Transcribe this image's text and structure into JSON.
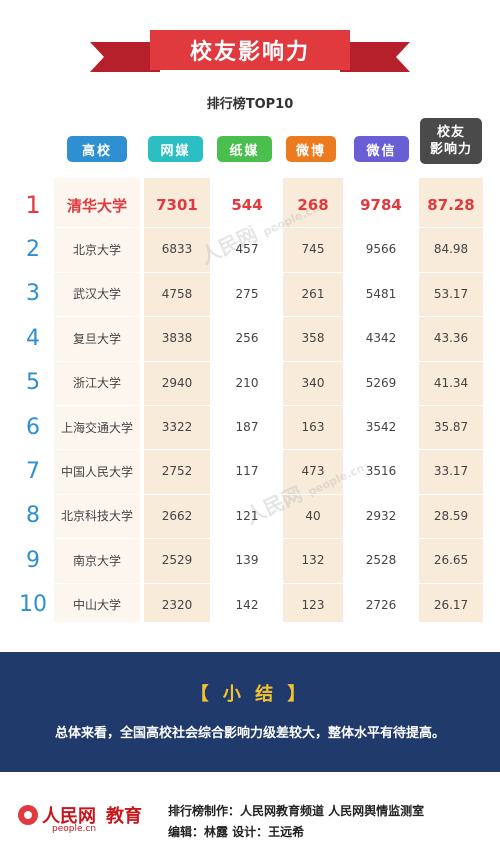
{
  "header": {
    "title": "校友影响力",
    "subtitle": "排行榜TOP10"
  },
  "columns": {
    "school": "高校",
    "web": "网媒",
    "paper": "纸媒",
    "weibo": "微博",
    "wechat": "微信",
    "score_line1": "校友",
    "score_line2": "影响力"
  },
  "rows": [
    {
      "rank": "1",
      "school": "清华大学",
      "web": "7301",
      "paper": "544",
      "weibo": "268",
      "wechat": "9784",
      "score": "87.28"
    },
    {
      "rank": "2",
      "school": "北京大学",
      "web": "6833",
      "paper": "457",
      "weibo": "745",
      "wechat": "9566",
      "score": "84.98"
    },
    {
      "rank": "3",
      "school": "武汉大学",
      "web": "4758",
      "paper": "275",
      "weibo": "261",
      "wechat": "5481",
      "score": "53.17"
    },
    {
      "rank": "4",
      "school": "复旦大学",
      "web": "3838",
      "paper": "256",
      "weibo": "358",
      "wechat": "4342",
      "score": "43.36"
    },
    {
      "rank": "5",
      "school": "浙江大学",
      "web": "2940",
      "paper": "210",
      "weibo": "340",
      "wechat": "5269",
      "score": "41.34"
    },
    {
      "rank": "6",
      "school": "上海交通大学",
      "web": "3322",
      "paper": "187",
      "weibo": "163",
      "wechat": "3542",
      "score": "35.87"
    },
    {
      "rank": "7",
      "school": "中国人民大学",
      "web": "2752",
      "paper": "117",
      "weibo": "473",
      "wechat": "3516",
      "score": "33.17"
    },
    {
      "rank": "8",
      "school": "北京科技大学",
      "web": "2662",
      "paper": "121",
      "weibo": "40",
      "wechat": "2932",
      "score": "28.59"
    },
    {
      "rank": "9",
      "school": "南京大学",
      "web": "2529",
      "paper": "139",
      "weibo": "132",
      "wechat": "2528",
      "score": "26.65"
    },
    {
      "rank": "10",
      "school": "中山大学",
      "web": "2320",
      "paper": "142",
      "weibo": "123",
      "wechat": "2726",
      "score": "26.17"
    }
  ],
  "watermark": {
    "text": "人民网",
    "domain": "people.cn"
  },
  "summary": {
    "title": "【 小 结 】",
    "text": "总体来看，全国高校社会综合影响力级差较大，整体水平有待提高。"
  },
  "footer": {
    "logo_text": "人民网",
    "logo_domain": "people.cn",
    "logo_channel": "教育",
    "line1": "排行榜制作：人民网教育频道  人民网舆情监测室",
    "line2": "编辑：林露          设计：王远希"
  },
  "colors": {
    "banner": "#e03a3e",
    "school_pill": "#2e8fd1",
    "web_pill": "#2bbfc3",
    "paper_pill": "#4bbf4d",
    "weibo_pill": "#ec7a1f",
    "wechat_pill": "#6a5ed6",
    "score_pill": "#4a4a4a",
    "summary_bg": "#1f3a6b",
    "summary_title": "#f2c230"
  }
}
